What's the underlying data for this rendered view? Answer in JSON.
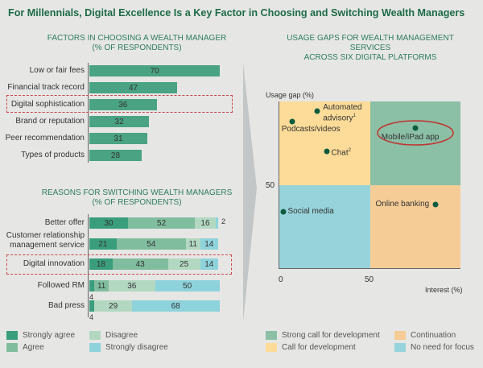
{
  "title": "For Millennials, Digital Excellence Is a Key Factor in Choosing and Switching Wealth Managers",
  "chart_data": [
    {
      "type": "bar",
      "title": "FACTORS IN CHOOSING A WEALTH MANAGER",
      "subtitle": "(% OF RESPONDENTS)",
      "categories": [
        "Low or fair fees",
        "Financial track record",
        "Digital sophistication",
        "Brand or reputation",
        "Peer recommendation",
        "Types of products"
      ],
      "values": [
        70,
        47,
        36,
        32,
        31,
        28
      ],
      "highlighted": "Digital sophistication",
      "color": "#4aa383"
    },
    {
      "type": "bar",
      "stacked": true,
      "title": "REASONS FOR SWITCHING WEALTH MANAGERS",
      "subtitle": "(% OF RESPONDENTS)",
      "categories": [
        "Better offer",
        "Customer relationship management service",
        "Digital innovation",
        "Followed RM",
        "Bad press"
      ],
      "series": [
        {
          "name": "Strongly agree",
          "color": "#3a9e7c",
          "values": [
            30,
            21,
            18,
            4,
            4
          ]
        },
        {
          "name": "Agree",
          "color": "#80bd9f",
          "values": [
            52,
            54,
            43,
            11,
            0
          ]
        },
        {
          "name": "Disagree",
          "color": "#b3d8c2",
          "values": [
            16,
            11,
            25,
            36,
            29
          ]
        },
        {
          "name": "Strongly disagree",
          "color": "#8ed3dc",
          "values": [
            2,
            14,
            14,
            50,
            68
          ]
        }
      ],
      "highlighted": "Digital innovation",
      "legend": "bottom"
    },
    {
      "type": "scatter",
      "title": "USAGE GAPS FOR WEALTH MANAGEMENT SERVICES",
      "subtitle": "ACROSS SIX DIGITAL PLATFORMS",
      "xlabel": "Interest (%)",
      "ylabel": "Usage gap (%)",
      "xlim": [
        0,
        100
      ],
      "ylim": [
        0,
        100
      ],
      "xticks": [
        "0",
        "50"
      ],
      "yticks": [
        "50"
      ],
      "quadrants": [
        {
          "name": "Strong call for development",
          "color": "#8bbfa6"
        },
        {
          "name": "Call for development",
          "color": "#fcdc98"
        },
        {
          "name": "Continuation",
          "color": "#f6cc96"
        },
        {
          "name": "No need for focus",
          "color": "#97d3da"
        }
      ],
      "points": [
        {
          "label": "Automated advisory",
          "sup": "1",
          "x": 21,
          "y": 94
        },
        {
          "label": "Podcasts/videos",
          "x": 7,
          "y": 88
        },
        {
          "label": "Chat",
          "sup": "2",
          "x": 26,
          "y": 70
        },
        {
          "label": "Mobile/iPad app",
          "x": 75,
          "y": 84,
          "highlighted": true
        },
        {
          "label": "Online banking",
          "x": 86,
          "y": 38
        },
        {
          "label": "Social media",
          "x": 2,
          "y": 34
        }
      ],
      "legend": "bottom"
    }
  ]
}
